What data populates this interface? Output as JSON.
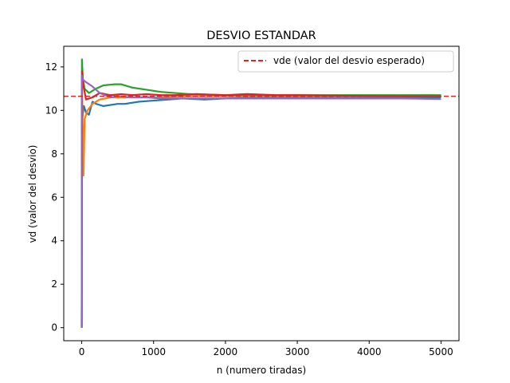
{
  "chart_data": {
    "type": "line",
    "title": "DESVIO ESTANDAR",
    "xlabel": "n (numero tiradas)",
    "ylabel": "vd (valor del desvio)",
    "xlim": [
      -250,
      5250
    ],
    "ylim": [
      -0.6,
      12.95
    ],
    "xticks": [
      0,
      1000,
      2000,
      3000,
      4000,
      5000
    ],
    "yticks": [
      0,
      2,
      4,
      6,
      8,
      10,
      12
    ],
    "grid": false,
    "legend_position": "top-right",
    "reference_line": {
      "label": "vde (valor del desvio esperado)",
      "y": 10.65,
      "color": "#d62728",
      "style": "dashed"
    },
    "series": [
      {
        "color": "#1f77b4",
        "points": [
          [
            0,
            0
          ],
          [
            5,
            9.5
          ],
          [
            30,
            10.2
          ],
          [
            60,
            9.9
          ],
          [
            100,
            9.8
          ],
          [
            150,
            10.4
          ],
          [
            200,
            10.3
          ],
          [
            300,
            10.2
          ],
          [
            400,
            10.25
          ],
          [
            500,
            10.3
          ],
          [
            600,
            10.3
          ],
          [
            800,
            10.4
          ],
          [
            1000,
            10.45
          ],
          [
            1200,
            10.5
          ],
          [
            1400,
            10.55
          ],
          [
            1700,
            10.5
          ],
          [
            2000,
            10.55
          ],
          [
            2500,
            10.6
          ],
          [
            3000,
            10.6
          ],
          [
            3500,
            10.6
          ],
          [
            4000,
            10.6
          ],
          [
            4500,
            10.6
          ],
          [
            5000,
            10.6
          ]
        ]
      },
      {
        "color": "#ff7f0e",
        "points": [
          [
            0,
            0
          ],
          [
            5,
            11.0
          ],
          [
            15,
            9.0
          ],
          [
            25,
            7.0
          ],
          [
            40,
            9.6
          ],
          [
            80,
            10.0
          ],
          [
            150,
            10.3
          ],
          [
            250,
            10.5
          ],
          [
            400,
            10.6
          ],
          [
            600,
            10.6
          ],
          [
            800,
            10.6
          ],
          [
            1000,
            10.6
          ],
          [
            1500,
            10.65
          ],
          [
            2000,
            10.65
          ],
          [
            2500,
            10.65
          ],
          [
            3000,
            10.65
          ],
          [
            3500,
            10.65
          ],
          [
            4000,
            10.65
          ],
          [
            4500,
            10.65
          ],
          [
            5000,
            10.65
          ]
        ]
      },
      {
        "color": "#2ca02c",
        "points": [
          [
            0,
            0
          ],
          [
            3,
            12.35
          ],
          [
            15,
            11.5
          ],
          [
            40,
            11.0
          ],
          [
            100,
            10.8
          ],
          [
            200,
            11.0
          ],
          [
            300,
            11.15
          ],
          [
            450,
            11.2
          ],
          [
            550,
            11.2
          ],
          [
            700,
            11.05
          ],
          [
            900,
            10.95
          ],
          [
            1100,
            10.85
          ],
          [
            1300,
            10.8
          ],
          [
            1500,
            10.75
          ],
          [
            2000,
            10.7
          ],
          [
            2500,
            10.7
          ],
          [
            3000,
            10.7
          ],
          [
            3500,
            10.7
          ],
          [
            4000,
            10.7
          ],
          [
            4500,
            10.7
          ],
          [
            5000,
            10.7
          ]
        ]
      },
      {
        "color": "#d62728",
        "points": [
          [
            0,
            0
          ],
          [
            5,
            11.8
          ],
          [
            20,
            11.2
          ],
          [
            60,
            10.5
          ],
          [
            150,
            10.6
          ],
          [
            250,
            10.8
          ],
          [
            400,
            10.7
          ],
          [
            550,
            10.75
          ],
          [
            700,
            10.7
          ],
          [
            900,
            10.75
          ],
          [
            1100,
            10.7
          ],
          [
            1300,
            10.7
          ],
          [
            1600,
            10.75
          ],
          [
            2000,
            10.7
          ],
          [
            2300,
            10.75
          ],
          [
            2700,
            10.7
          ],
          [
            3000,
            10.7
          ],
          [
            3500,
            10.68
          ],
          [
            4000,
            10.66
          ],
          [
            4500,
            10.65
          ],
          [
            5000,
            10.65
          ]
        ]
      },
      {
        "color": "#9467bd",
        "points": [
          [
            0,
            0
          ],
          [
            3,
            11.6
          ],
          [
            20,
            11.4
          ],
          [
            60,
            11.3
          ],
          [
            150,
            11.1
          ],
          [
            250,
            10.8
          ],
          [
            400,
            10.6
          ],
          [
            500,
            10.65
          ],
          [
            700,
            10.6
          ],
          [
            900,
            10.6
          ],
          [
            1100,
            10.55
          ],
          [
            1400,
            10.55
          ],
          [
            1800,
            10.55
          ],
          [
            2200,
            10.55
          ],
          [
            2600,
            10.55
          ],
          [
            3000,
            10.55
          ],
          [
            3500,
            10.55
          ],
          [
            4000,
            10.55
          ],
          [
            4500,
            10.55
          ],
          [
            5000,
            10.52
          ]
        ]
      }
    ]
  }
}
